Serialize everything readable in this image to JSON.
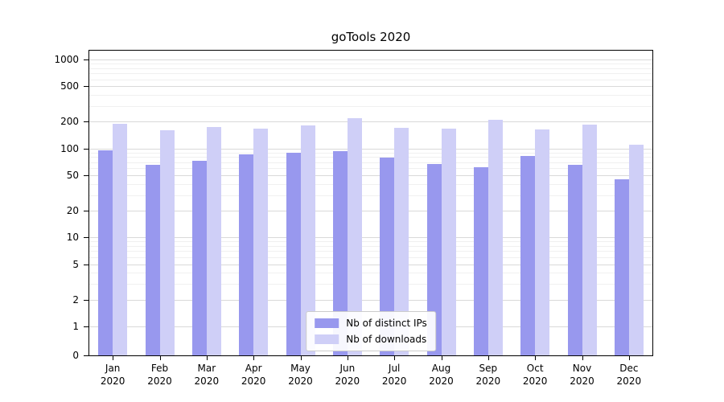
{
  "chart_data": {
    "type": "bar",
    "title": "goTools 2020",
    "xlabel": "",
    "ylabel": "",
    "yscale": "symlog",
    "grid": true,
    "legend_position": "lower center",
    "categories": [
      "Jan 2020",
      "Feb 2020",
      "Mar 2020",
      "Apr 2020",
      "May 2020",
      "Jun 2020",
      "Jul 2020",
      "Aug 2020",
      "Sep 2020",
      "Oct 2020",
      "Nov 2020",
      "Dec 2020"
    ],
    "series": [
      {
        "name": "Nb of distinct IPs",
        "color": "#9898ee",
        "values": [
          95,
          66,
          73,
          85,
          90,
          93,
          79,
          67,
          62,
          83,
          65,
          45
        ]
      },
      {
        "name": "Nb of downloads",
        "color": "#cfcff7",
        "values": [
          190,
          160,
          175,
          167,
          182,
          220,
          172,
          168,
          210,
          163,
          187,
          110
        ]
      }
    ],
    "yticks": [
      0,
      1,
      2,
      5,
      10,
      20,
      50,
      100,
      200,
      500,
      1000
    ],
    "yticks_minor": [
      3,
      4,
      6,
      7,
      8,
      9,
      30,
      40,
      60,
      70,
      80,
      90,
      300,
      400,
      600,
      700,
      800,
      900
    ],
    "ylim": [
      0,
      1250
    ]
  }
}
